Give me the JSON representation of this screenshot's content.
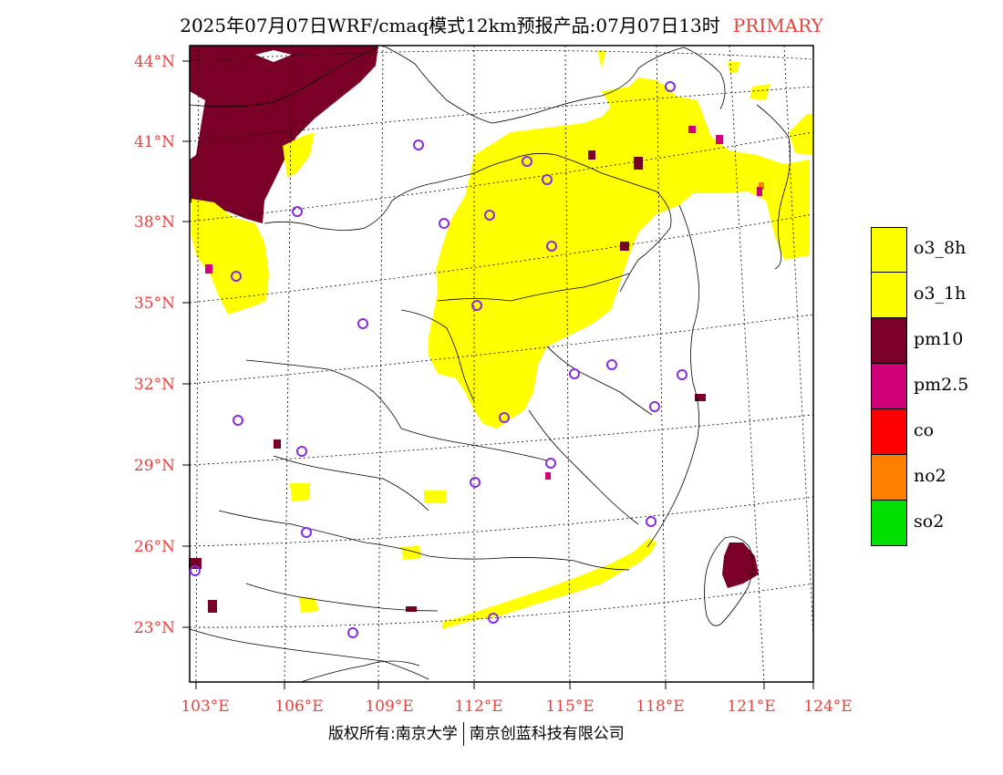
{
  "title": {
    "main": "2025年07月07日WRF/cmaq模式12km预报产品:07月07日13时",
    "tag": "PRIMARY"
  },
  "map": {
    "lat_labels": [
      "44°N",
      "41°N",
      "38°N",
      "35°N",
      "32°N",
      "29°N",
      "26°N",
      "23°N"
    ],
    "lon_labels": [
      "103°E",
      "106°E",
      "109°E",
      "112°E",
      "115°E",
      "118°E",
      "121°E",
      "124°E"
    ],
    "label_color": "#e8413c",
    "station_marker_color": "#8a2be2"
  },
  "legend": [
    {
      "label": "o3_8h",
      "color": "#ffff00"
    },
    {
      "label": "o3_1h",
      "color": "#ffff00"
    },
    {
      "label": "pm10",
      "color": "#7b0027"
    },
    {
      "label": "pm2.5",
      "color": "#d0007a"
    },
    {
      "label": "co",
      "color": "#ff0000"
    },
    {
      "label": "no2",
      "color": "#ff8000"
    },
    {
      "label": "so2",
      "color": "#00e000"
    }
  ],
  "footer": {
    "left": "版权所有:南京大学",
    "right": "南京创蓝科技有限公司"
  }
}
